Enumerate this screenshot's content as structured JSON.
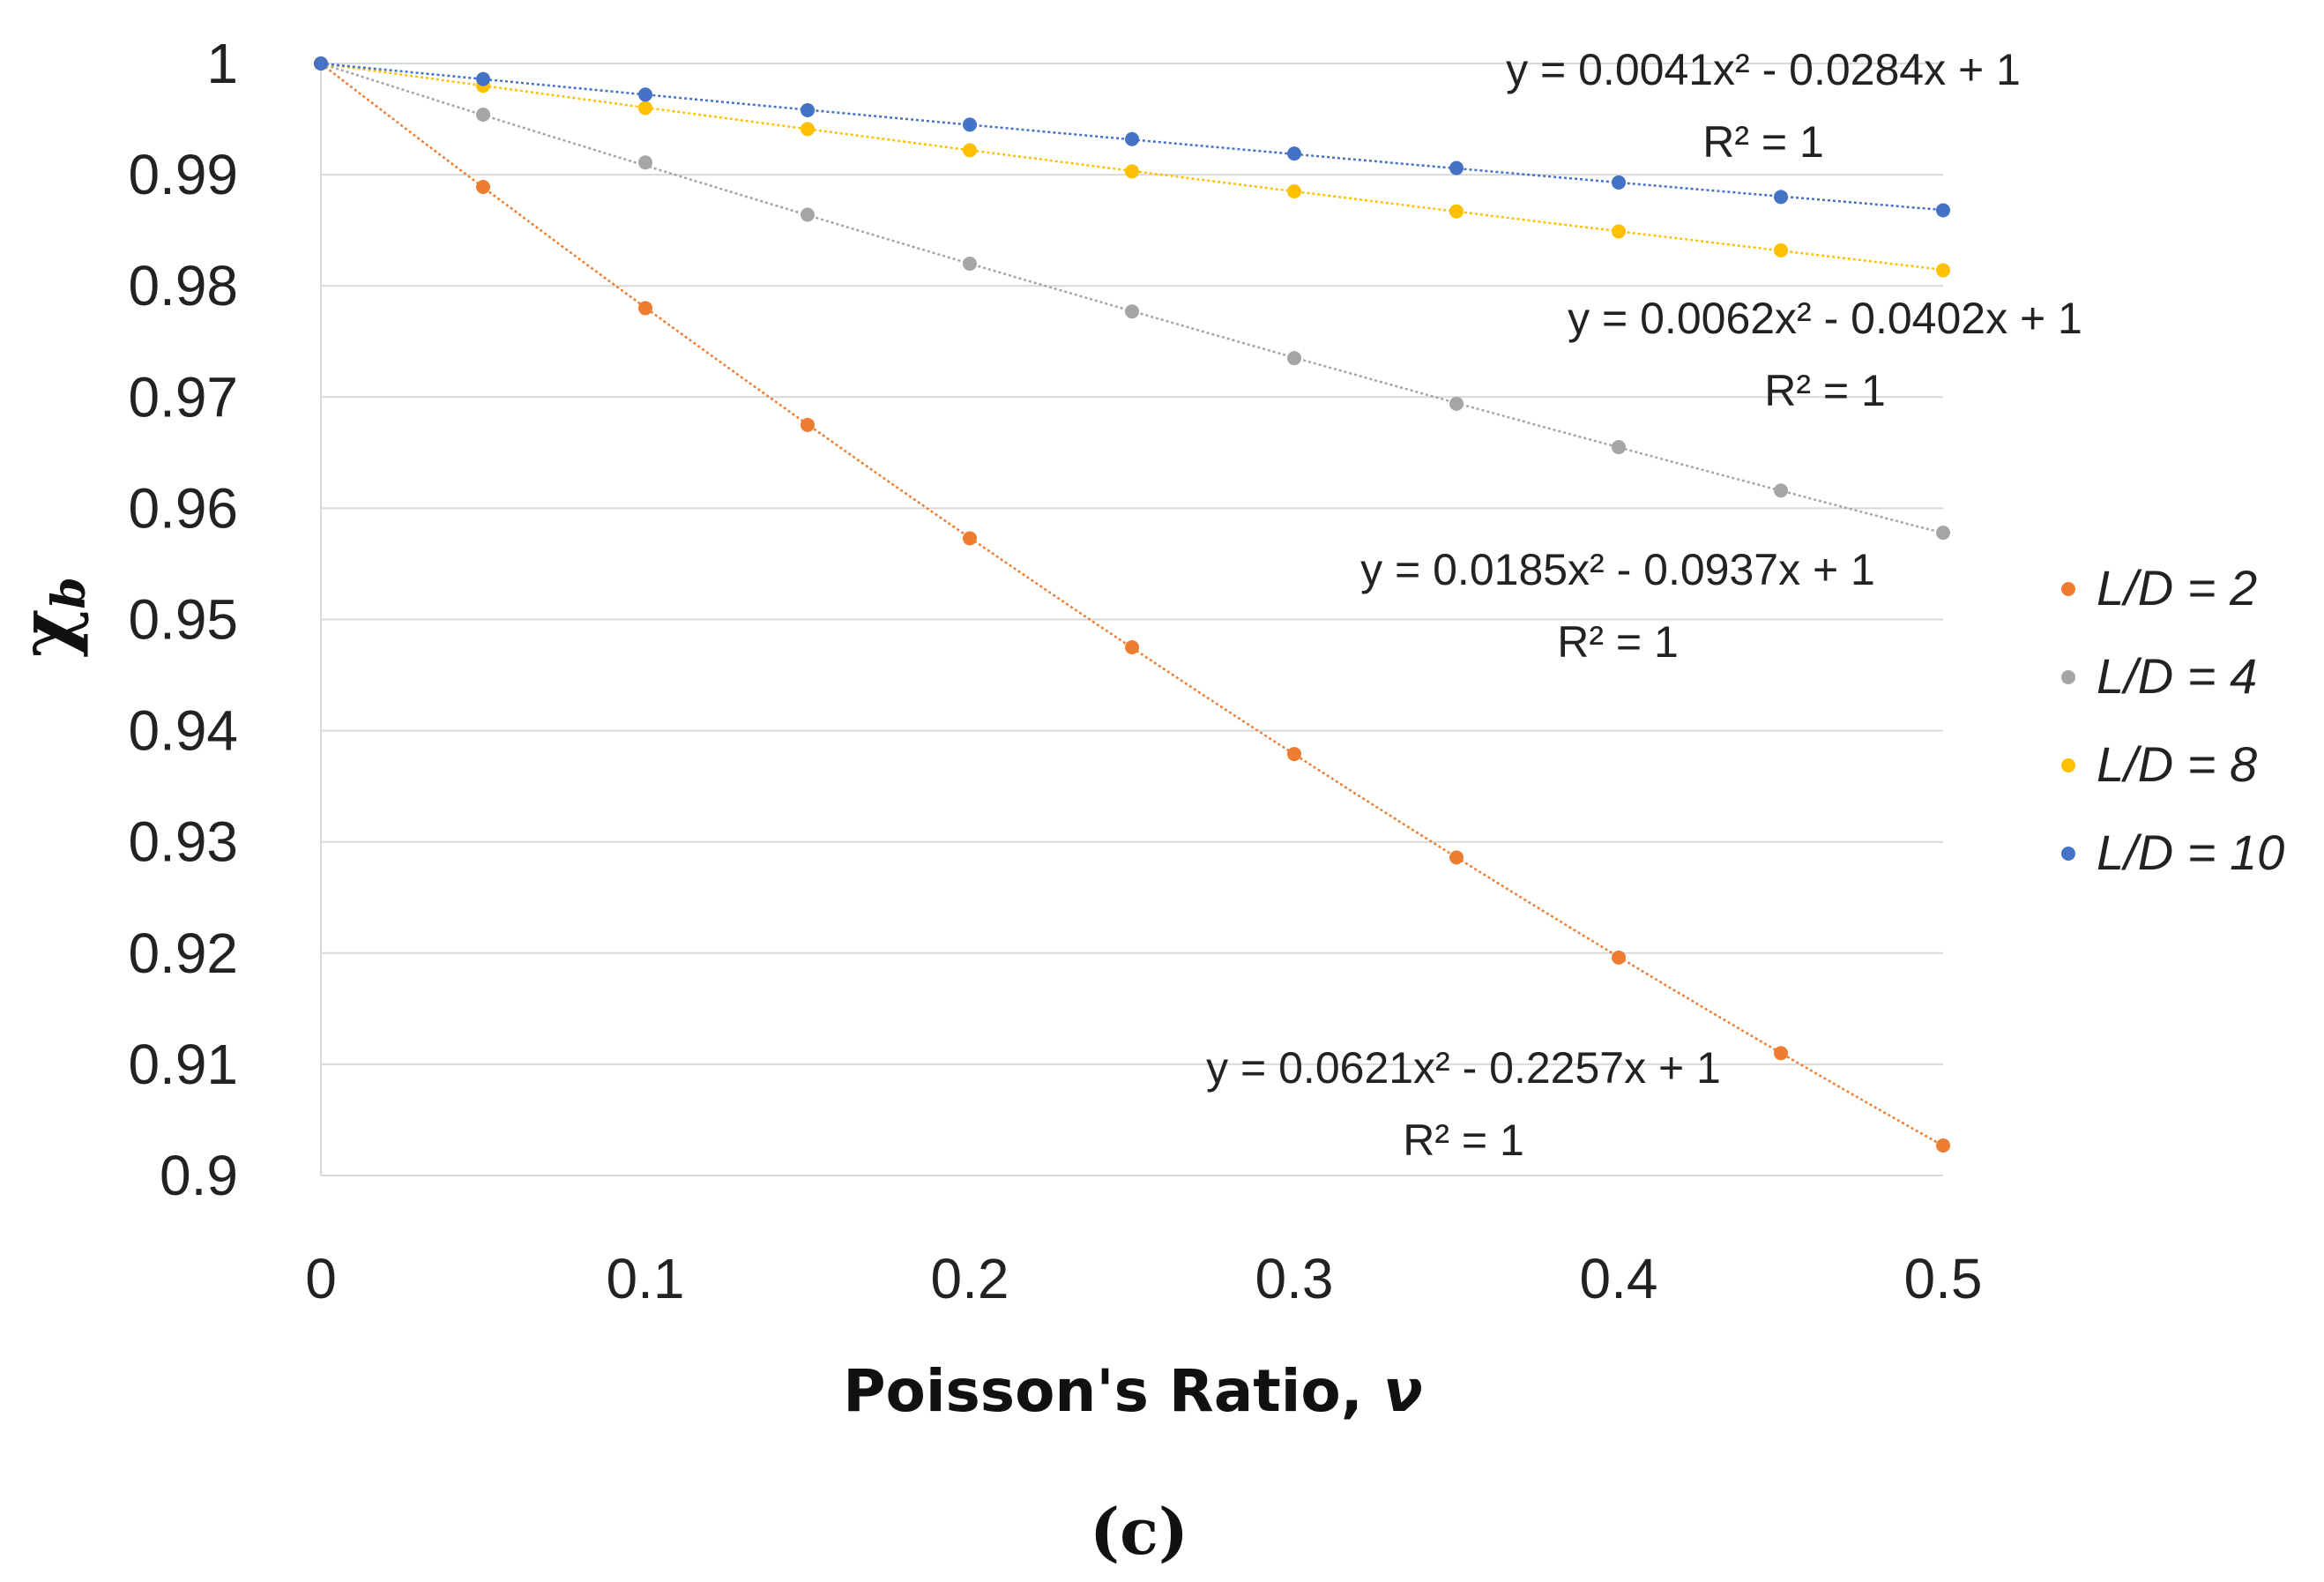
{
  "chart_data": {
    "type": "scatter",
    "xlabel": "Poisson's Ratio, ",
    "xlabel_symbol": "ν",
    "ylabel": "χ",
    "ylabel_sub": "b",
    "caption": "(c)",
    "xlim": [
      0,
      0.5
    ],
    "ylim": [
      0.9,
      1.0
    ],
    "xticks": [
      "0",
      "0.1",
      "0.2",
      "0.3",
      "0.4",
      "0.5"
    ],
    "yticks": [
      "0.9",
      "0.91",
      "0.92",
      "0.93",
      "0.94",
      "0.95",
      "0.96",
      "0.97",
      "0.98",
      "0.99",
      "1"
    ],
    "x": [
      0,
      0.05,
      0.1,
      0.15,
      0.2,
      0.25,
      0.3,
      0.35,
      0.4,
      0.45,
      0.5
    ],
    "grid": true,
    "legend_position": "right",
    "series": [
      {
        "name": "L/D = 2",
        "color": "#ED7D31",
        "values": [
          1.0,
          0.9889,
          0.978,
          0.9675,
          0.9573,
          0.9475,
          0.9379,
          0.9286,
          0.9196,
          0.911,
          0.9027
        ],
        "trendline": {
          "a": 0.0621,
          "b": -0.2257,
          "c": 1
        },
        "equation": "y = 0.0621x² - 0.2257x + 1",
        "r2": "R² = 1"
      },
      {
        "name": "L/D = 4",
        "color": "#A5A5A5",
        "values": [
          1.0,
          0.9954,
          0.9911,
          0.9864,
          0.982,
          0.9777,
          0.9735,
          0.9694,
          0.9655,
          0.9616,
          0.9578
        ],
        "trendline": {
          "a": 0.0185,
          "b": -0.0937,
          "c": 1
        },
        "equation": "y = 0.0185x² - 0.0937x + 1",
        "r2": "R² = 1"
      },
      {
        "name": "L/D = 8",
        "color": "#FFC000",
        "values": [
          1.0,
          0.998,
          0.996,
          0.9941,
          0.9922,
          0.9903,
          0.9885,
          0.9867,
          0.9849,
          0.9832,
          0.9814
        ],
        "trendline": {
          "a": 0.0062,
          "b": -0.0402,
          "c": 1
        },
        "equation": "y = 0.0062x² - 0.0402x + 1",
        "r2": "R² = 1"
      },
      {
        "name": "L/D = 10",
        "color": "#4472C4",
        "values": [
          1.0,
          0.9986,
          0.9972,
          0.9958,
          0.9945,
          0.9932,
          0.9919,
          0.9906,
          0.9893,
          0.988,
          0.9868
        ],
        "trendline": {
          "a": 0.0041,
          "b": -0.0284,
          "c": 1
        },
        "equation": "y = 0.0041x² - 0.0284x + 1",
        "r2": "R² = 1"
      }
    ]
  }
}
